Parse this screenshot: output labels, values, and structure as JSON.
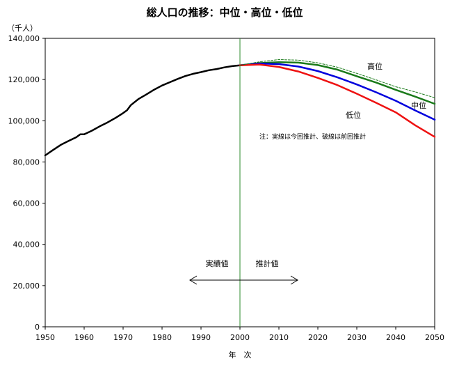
{
  "chart_data": {
    "type": "line",
    "title": "総人口の推移：中位・高位・低位",
    "ylabel": "（千人）",
    "xlabel": "年　次",
    "xlim": [
      1950,
      2050
    ],
    "ylim": [
      0,
      140000
    ],
    "xticks": [
      "1950",
      "1960",
      "1970",
      "1980",
      "1990",
      "2000",
      "2010",
      "2020",
      "2030",
      "2040",
      "2050"
    ],
    "yticks": [
      "0",
      "20,000",
      "40,000",
      "60,000",
      "80,000",
      "100,000",
      "120,000",
      "140,000"
    ],
    "grid": false,
    "divider_year": 2000,
    "annotations": {
      "actual": "実績値",
      "projected": "推計値",
      "note": "注：実線は今回推計、破線は前回推計"
    },
    "series": [
      {
        "name": "",
        "role": "actual",
        "color": "#000000",
        "x": [
          1950,
          1952,
          1954,
          1956,
          1958,
          1959,
          1960,
          1962,
          1964,
          1966,
          1968,
          1970,
          1971,
          1972,
          1974,
          1976,
          1978,
          1980,
          1982,
          1984,
          1986,
          1988,
          1990,
          1992,
          1994,
          1996,
          1998,
          2000
        ],
        "y": [
          83200,
          85800,
          88300,
          90200,
          92000,
          93400,
          93400,
          95200,
          97300,
          99200,
          101300,
          103700,
          105100,
          107600,
          110600,
          112800,
          115100,
          117100,
          118700,
          120300,
          121700,
          122800,
          123600,
          124500,
          125100,
          125900,
          126500,
          126900
        ]
      },
      {
        "name": "高位",
        "role": "high",
        "color": "#1a7a1a",
        "x": [
          2000,
          2005,
          2010,
          2015,
          2020,
          2025,
          2030,
          2035,
          2040,
          2045,
          2050
        ],
        "y": [
          126900,
          128000,
          128400,
          128200,
          127000,
          124800,
          121600,
          118500,
          115000,
          111700,
          108200
        ]
      },
      {
        "name": "中位",
        "role": "medium",
        "color": "#0000dd",
        "x": [
          2000,
          2005,
          2010,
          2015,
          2020,
          2025,
          2030,
          2035,
          2040,
          2045,
          2050
        ],
        "y": [
          126900,
          127800,
          127500,
          126300,
          124100,
          121100,
          117600,
          113800,
          109700,
          105000,
          100500
        ]
      },
      {
        "name": "低位",
        "role": "low",
        "color": "#ee1111",
        "x": [
          2000,
          2005,
          2010,
          2015,
          2020,
          2025,
          2030,
          2035,
          2040,
          2045,
          2050
        ],
        "y": [
          126900,
          127300,
          126100,
          123900,
          120800,
          117300,
          113100,
          108700,
          104100,
          97800,
          92200
        ]
      },
      {
        "name": "",
        "role": "previous",
        "style": "dashed",
        "color": "#1a7a1a",
        "x": [
          2000,
          2005,
          2010,
          2015,
          2020,
          2025,
          2030,
          2035,
          2040,
          2045,
          2050
        ],
        "y": [
          126900,
          128600,
          129700,
          129400,
          128100,
          126000,
          123000,
          119800,
          116500,
          114000,
          111200
        ]
      }
    ],
    "labels": {
      "high": "高位",
      "medium": "中位",
      "low": "低位"
    }
  }
}
